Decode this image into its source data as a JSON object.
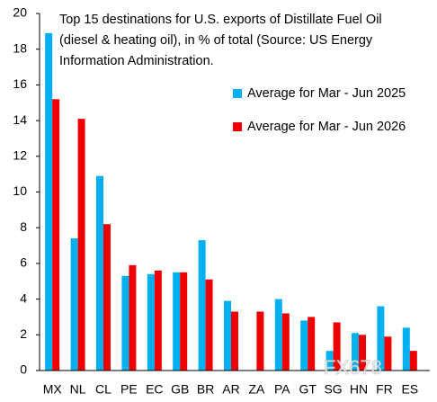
{
  "chart_data": {
    "type": "bar",
    "title": [
      "Top 15 destinations for U.S. exports of Distillate Fuel Oil",
      "(diesel & heating oil), in % of total (Source: US Energy",
      "Information Administration."
    ],
    "categories": [
      "MX",
      "NL",
      "CL",
      "PE",
      "EC",
      "GB",
      "BR",
      "AR",
      "ZA",
      "PA",
      "GT",
      "SG",
      "HN",
      "FR",
      "ES"
    ],
    "series": [
      {
        "name": "Average for Mar - Jun 2025",
        "color": "#00b0f0",
        "values": [
          18.9,
          7.4,
          10.9,
          5.3,
          5.4,
          5.5,
          7.3,
          3.9,
          0,
          4.0,
          2.8,
          1.1,
          2.1,
          3.6,
          2.4
        ]
      },
      {
        "name": "Average for Mar - Jun 2026",
        "color": "#ee0000",
        "values": [
          15.2,
          14.1,
          8.2,
          5.9,
          5.6,
          5.5,
          5.1,
          3.3,
          3.3,
          3.2,
          3.0,
          2.7,
          2.0,
          1.9,
          1.1
        ]
      }
    ],
    "ylim": [
      0,
      20
    ],
    "yticks": [
      0,
      2,
      4,
      6,
      8,
      10,
      12,
      14,
      16,
      18,
      20
    ],
    "grid": false,
    "watermark": "FX678"
  }
}
